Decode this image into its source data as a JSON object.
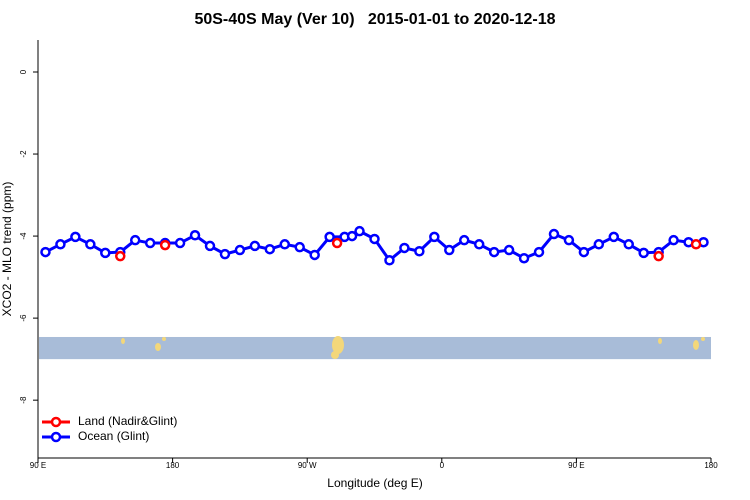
{
  "chart_data": {
    "type": "line",
    "title": "50S-40S May (Ver 10)   2015-01-01 to 2020-12-18",
    "x_label": "Longitude (deg E)",
    "y_label": "XCO2 - MLO trend (ppm)",
    "xlim": [
      90,
      540
    ],
    "xticks": [
      {
        "value": 90,
        "label": "90 E"
      },
      {
        "value": 180,
        "label": "180"
      },
      {
        "value": 270,
        "label": "90 W"
      },
      {
        "value": 360,
        "label": "0"
      },
      {
        "value": 450,
        "label": "90 E"
      },
      {
        "value": 540,
        "label": "180"
      }
    ],
    "ylim": [
      -9.41,
      0.78
    ],
    "yticks": [
      0,
      -2,
      -4,
      -6,
      -8
    ],
    "band": {
      "ylim": [
        -7.0,
        -6.46
      ],
      "color": "#a8bcd8"
    },
    "legend": "bottom-left",
    "series": [
      {
        "name": "Land (Nadir&Glint)",
        "color": "#ff0000",
        "lines": false,
        "x": [
          145,
          175,
          290,
          505,
          530
        ],
        "values": [
          -4.49,
          -4.22,
          -4.17,
          -4.49,
          -4.2
        ]
      },
      {
        "name": "Ocean (Glint)",
        "color": "#0000ff",
        "lines": true,
        "x": [
          95,
          105,
          115,
          125,
          135,
          145,
          155,
          165,
          175,
          185,
          195,
          205,
          215,
          225,
          235,
          245,
          255,
          265,
          275,
          285,
          295,
          300,
          305,
          315,
          325,
          335,
          345,
          355,
          365,
          375,
          385,
          395,
          405,
          415,
          425,
          435,
          445,
          455,
          465,
          475,
          485,
          495,
          505,
          515,
          525,
          535
        ],
        "values": [
          -4.39,
          -4.2,
          -4.02,
          -4.2,
          -4.41,
          -4.39,
          -4.1,
          -4.17,
          -4.17,
          -4.17,
          -3.98,
          -4.24,
          -4.44,
          -4.34,
          -4.24,
          -4.32,
          -4.2,
          -4.27,
          -4.46,
          -4.02,
          -4.02,
          -4.0,
          -3.88,
          -4.07,
          -4.59,
          -4.29,
          -4.37,
          -4.02,
          -4.34,
          -4.1,
          -4.2,
          -4.39,
          -4.34,
          -4.54,
          -4.39,
          -3.95,
          -4.1,
          -4.39,
          -4.2,
          -4.02,
          -4.2,
          -4.41,
          -4.39,
          -4.1,
          -4.15,
          -4.15
        ]
      }
    ]
  }
}
